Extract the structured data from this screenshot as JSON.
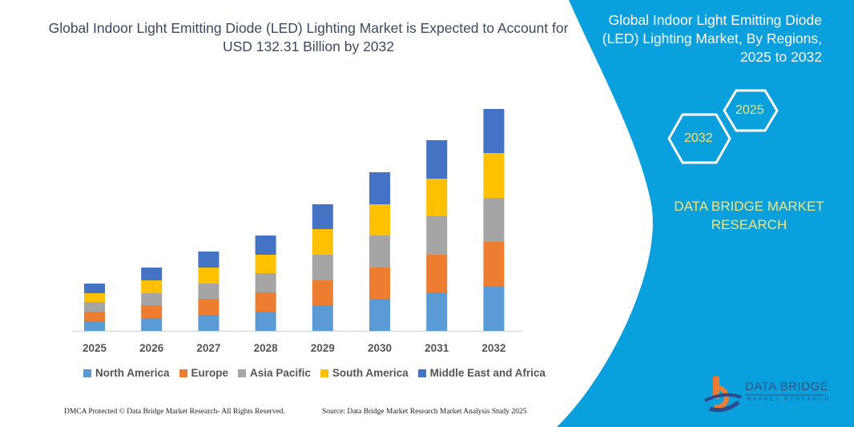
{
  "header": {
    "title": "Global Indoor Light Emitting Diode (LED) Lighting Market is Expected to Account for USD 132.31 Billion by 2032"
  },
  "side_panel": {
    "title": "Global Indoor Light Emitting Diode (LED) Lighting Market, By Regions, 2025 to 2032",
    "hex_start": "2025",
    "hex_end": "2032",
    "brand": "DATA BRIDGE MARKET RESEARCH",
    "panel_color": "#0a9fdd",
    "accent_text_color": "#f3e57c"
  },
  "logo": {
    "text": "DATA BRIDGE",
    "subtext": "MARKET RESEARCH"
  },
  "footer": {
    "left": "DMCA Protected © Data Bridge Market Research- All Rights Reserved.",
    "right": "Source: Data Bridge Market Research Market Analysis Study 2025"
  },
  "chart_data": {
    "type": "bar",
    "stacked": true,
    "title": "Global Indoor Light Emitting Diode (LED) Lighting Market is Expected to Account for USD 132.31 Billion by 2032",
    "xlabel": "",
    "ylabel": "",
    "y_axis_shown": false,
    "grid": false,
    "legend_position": "bottom",
    "note": "",
    "categories": [
      "2025",
      "2026",
      "2027",
      "2028",
      "2029",
      "2030",
      "2031",
      "2032"
    ],
    "series": [
      {
        "name": "North America",
        "color": "#5b9bd5",
        "values": [
          12,
          16,
          20,
          24,
          32,
          40,
          48,
          55
        ]
      },
      {
        "name": "Europe",
        "color": "#ed7d31",
        "values": [
          12,
          16,
          20,
          24,
          31,
          39,
          47,
          56
        ]
      },
      {
        "name": "Asia Pacific",
        "color": "#a5a5a5",
        "values": [
          12,
          15,
          19,
          24,
          32,
          40,
          48,
          55
        ]
      },
      {
        "name": "South America",
        "color": "#ffc000",
        "values": [
          11,
          16,
          20,
          23,
          32,
          39,
          47,
          56
        ]
      },
      {
        "name": "Middle East and Africa",
        "color": "#4472c4",
        "values": [
          12,
          16,
          20,
          24,
          31,
          40,
          48,
          55
        ]
      }
    ]
  }
}
